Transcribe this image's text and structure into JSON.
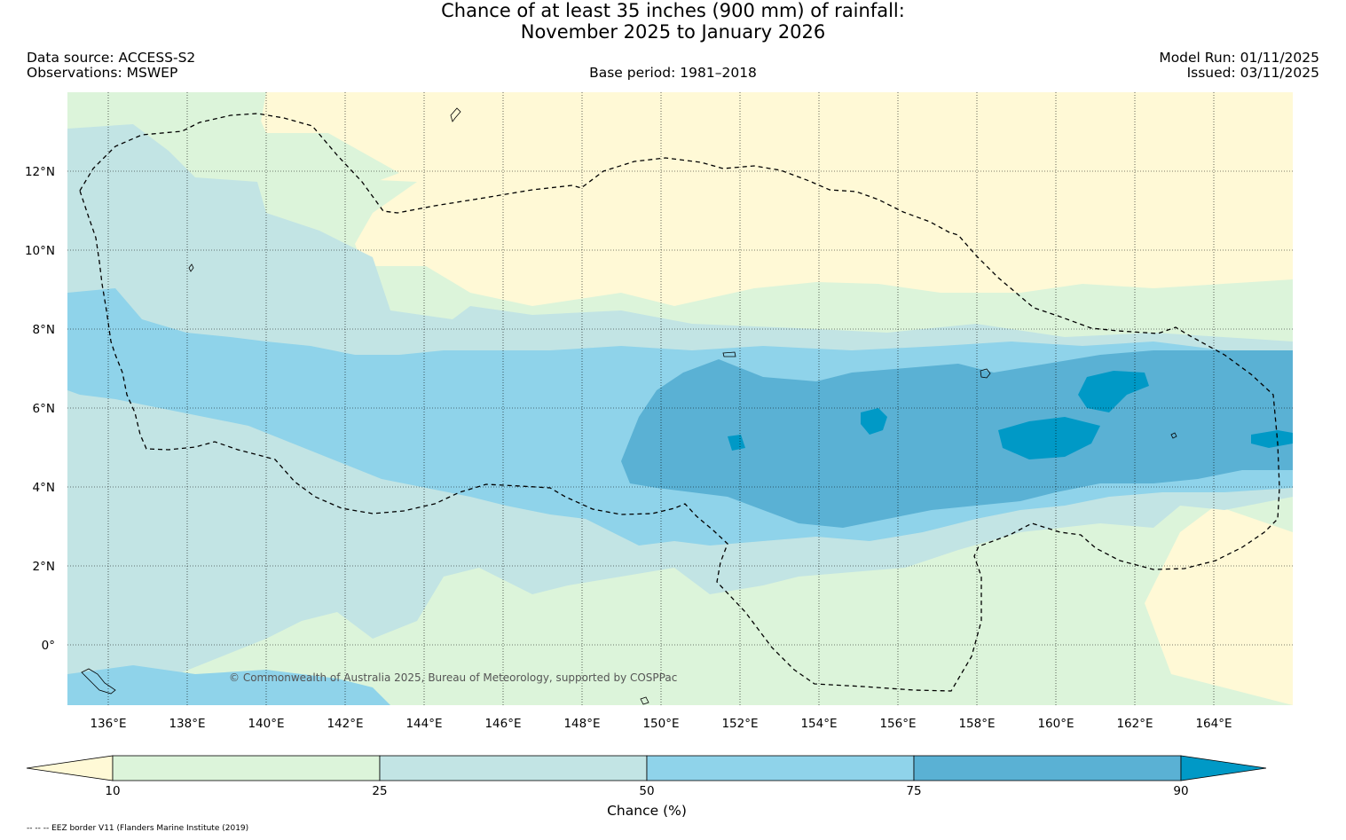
{
  "title": {
    "line1": "Chance of at least 35 inches (900  mm) of rainfall:",
    "line2": "November 2025 to January 2026"
  },
  "meta": {
    "data_source": "Data source: ACCESS-S2",
    "observations": "Observations: MSWEP",
    "base_period": "Base period: 1981–2018",
    "model_run": "Model Run: 01/11/2025",
    "issued": "Issued: 03/11/2025"
  },
  "map": {
    "lon_labels": [
      "136°E",
      "138°E",
      "140°E",
      "142°E",
      "144°E",
      "146°E",
      "148°E",
      "150°E",
      "152°E",
      "154°E",
      "156°E",
      "158°E",
      "160°E",
      "162°E",
      "164°E"
    ],
    "lat_labels": [
      "12°N",
      "10°N",
      "8°N",
      "6°N",
      "4°N",
      "2°N",
      "0°"
    ],
    "copyright": "© Commonwealth of Australia 2025, Bureau of Meteorology, supported by COSPPac",
    "colors": {
      "below_10": "#fff9d6",
      "c10_25": "#dcf4da",
      "c25_50": "#c2e4e4",
      "c50_75": "#8fd3ea",
      "c75_90": "#5ab1d4",
      "above_90": "#0099c6"
    }
  },
  "colorbar": {
    "ticks": [
      "10",
      "25",
      "50",
      "75",
      "90"
    ],
    "title": "Chance (%)"
  },
  "footnote": "-- -- -- EEZ border V11 (Flanders Marine Institute (2019)"
}
